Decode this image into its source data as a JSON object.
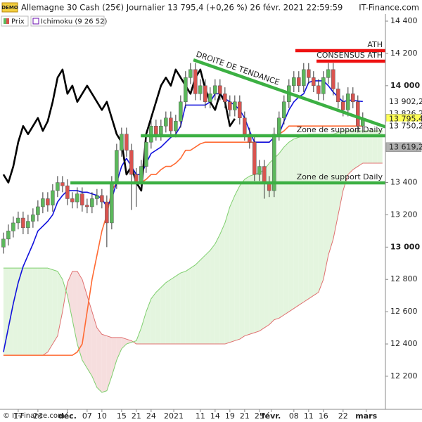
{
  "chart_data": {
    "type": "candlestick",
    "badge": "DEMO",
    "title": "Allemagne 30 Cash (25€) Journalier 13 795,4 (+0,26 %) 26 févr. 2021 22:59:59",
    "source": "IT-Finance.com",
    "copyright": "© IT-Finance.com",
    "legend": [
      "Prix",
      "Ichimoku (9 26 52)"
    ],
    "up_color": "#5cb85c",
    "down_color": "#d9534f",
    "open": [
      13000,
      13050,
      13100,
      13150,
      13180,
      13120,
      13160,
      13200,
      13250,
      13300,
      13260,
      13350,
      13400,
      13380,
      13300,
      13280,
      13330,
      13260,
      13250,
      13300,
      13320,
      13280,
      13150,
      13400,
      13600,
      13700,
      13600,
      13450,
      13400,
      13500,
      13650,
      13750,
      13700,
      13750,
      13800,
      13720,
      13780,
      13900,
      14050,
      14100,
      13950,
      14000,
      13900,
      13950,
      14000,
      13950,
      13900,
      13850,
      13900,
      13800,
      13700,
      13650,
      13450,
      13500,
      13400,
      13350,
      13700,
      13800,
      13900,
      14000,
      14050,
      14000,
      14100,
      14050,
      14000,
      13950,
      14050,
      14100,
      13980,
      13900,
      13850,
      13950,
      13900,
      13750
    ],
    "high": [
      13090,
      13140,
      13190,
      13220,
      13220,
      13200,
      13240,
      13290,
      13340,
      13340,
      13390,
      13440,
      13440,
      13420,
      13340,
      13370,
      13370,
      13300,
      13340,
      13360,
      13360,
      13320,
      13440,
      13640,
      13740,
      13740,
      13640,
      13490,
      13540,
      13690,
      13790,
      13790,
      13790,
      13840,
      13840,
      13820,
      13940,
      14090,
      14140,
      14140,
      14040,
      14040,
      13990,
      14040,
      14040,
      13990,
      13940,
      13940,
      13940,
      13840,
      13740,
      13690,
      13540,
      13540,
      13440,
      13740,
      13840,
      13940,
      14040,
      14090,
      14090,
      14140,
      14140,
      14090,
      14040,
      14090,
      14140,
      14140,
      14020,
      13940,
      13990,
      13990,
      13940,
      13835
    ],
    "low": [
      12960,
      13010,
      13060,
      13110,
      13080,
      13080,
      13120,
      13160,
      13210,
      13220,
      13220,
      13310,
      13340,
      13260,
      13240,
      13240,
      13220,
      13210,
      13210,
      13260,
      13240,
      13000,
      13110,
      13360,
      13560,
      13560,
      13230,
      13250,
      13360,
      13460,
      13610,
      13660,
      13660,
      13710,
      13680,
      13680,
      13740,
      13860,
      14010,
      13910,
      13910,
      13860,
      13860,
      13910,
      13910,
      13860,
      13810,
      13810,
      13760,
      13660,
      13610,
      13410,
      13410,
      13300,
      13310,
      13310,
      13660,
      13760,
      13860,
      13960,
      13960,
      13960,
      14010,
      13960,
      13910,
      13910,
      14010,
      13940,
      13860,
      13810,
      13810,
      13860,
      13710,
      13710
    ],
    "close": [
      13050,
      13100,
      13150,
      13180,
      13120,
      13160,
      13200,
      13250,
      13300,
      13260,
      13350,
      13400,
      13380,
      13300,
      13280,
      13330,
      13260,
      13250,
      13300,
      13320,
      13280,
      13150,
      13400,
      13600,
      13700,
      13600,
      13450,
      13400,
      13500,
      13650,
      13750,
      13700,
      13750,
      13800,
      13720,
      13780,
      13900,
      14050,
      14100,
      13950,
      14000,
      13900,
      13950,
      14000,
      13950,
      13900,
      13850,
      13900,
      13800,
      13700,
      13650,
      13450,
      13500,
      13400,
      13350,
      13700,
      13800,
      13900,
      14000,
      14050,
      14000,
      14100,
      14050,
      14000,
      13950,
      14050,
      14100,
      13980,
      13900,
      13850,
      13950,
      13900,
      13750,
      13795.4
    ],
    "ichimoku": {
      "up_fill": "#e4f5df",
      "down_fill": "#f6dede",
      "span_a": {
        "color": "#7fcf6e",
        "values": [
          12870,
          12870,
          12870,
          12870,
          12870,
          12870,
          12870,
          12870,
          12870,
          12870,
          12860,
          12850,
          12800,
          12700,
          12550,
          12400,
          12300,
          12250,
          12200,
          12130,
          12100,
          12110,
          12200,
          12300,
          12370,
          12400,
          12410,
          12420,
          12500,
          12600,
          12680,
          12720,
          12750,
          12780,
          12800,
          12820,
          12840,
          12850,
          12870,
          12890,
          12920,
          12950,
          12980,
          13020,
          13080,
          13150,
          13250,
          13320,
          13380,
          13420,
          13440,
          13450,
          13460,
          13480,
          13520,
          13550,
          13580,
          13620,
          13650,
          13670,
          13680,
          13690,
          13700,
          13700,
          13700,
          13700,
          13700,
          13700,
          13710,
          13720,
          13720,
          13720,
          13720,
          13720,
          13720,
          13720,
          13720,
          13720
        ]
      },
      "span_b": {
        "color": "#e07070",
        "values": [
          12330,
          12330,
          12330,
          12330,
          12330,
          12330,
          12330,
          12330,
          12330,
          12350,
          12400,
          12450,
          12600,
          12780,
          12850,
          12850,
          12800,
          12700,
          12600,
          12500,
          12460,
          12450,
          12440,
          12440,
          12440,
          12430,
          12420,
          12400,
          12400,
          12400,
          12400,
          12400,
          12400,
          12400,
          12400,
          12400,
          12400,
          12400,
          12400,
          12400,
          12400,
          12400,
          12400,
          12400,
          12400,
          12400,
          12410,
          12420,
          12430,
          12450,
          12460,
          12470,
          12480,
          12500,
          12520,
          12550,
          12560,
          12580,
          12600,
          12620,
          12640,
          12660,
          12680,
          12700,
          12720,
          12800,
          12950,
          13050,
          13200,
          13350,
          13450,
          13480,
          13500,
          13520,
          13520,
          13520,
          13520,
          13520
        ]
      },
      "kijun": {
        "color": "#ff6a33",
        "values": [
          12330,
          12330,
          12330,
          12330,
          12330,
          12330,
          12330,
          12330,
          12330,
          12330,
          12330,
          12330,
          12330,
          12330,
          12330,
          12350,
          12400,
          12600,
          12800,
          12950,
          13100,
          13200,
          13350,
          13400,
          13400,
          13400,
          13400,
          13400,
          13400,
          13420,
          13450,
          13450,
          13480,
          13500,
          13500,
          13520,
          13550,
          13600,
          13600,
          13620,
          13640,
          13650,
          13650,
          13650,
          13650,
          13650,
          13650,
          13650,
          13650,
          13650,
          13650,
          13650,
          13650,
          13650,
          13650,
          13680,
          13700,
          13720,
          13750.2,
          13750.2,
          13750.2,
          13750.2,
          13750.2,
          13750.2,
          13750.2,
          13750.2,
          13750.2,
          13750.2,
          13750.2,
          13750.2,
          13750.2,
          13750.2,
          13750.2,
          13750.2
        ]
      },
      "tenkan": {
        "color": "#1010dd",
        "values": [
          12350,
          12500,
          12650,
          12780,
          12880,
          12950,
          13020,
          13100,
          13130,
          13160,
          13200,
          13280,
          13320,
          13350,
          13350,
          13350,
          13340,
          13340,
          13330,
          13320,
          13300,
          13250,
          13300,
          13400,
          13500,
          13550,
          13500,
          13450,
          13450,
          13520,
          13580,
          13600,
          13620,
          13650,
          13680,
          13700,
          13750,
          13880,
          13880,
          13880,
          13880,
          13880,
          13900,
          13950,
          13950,
          13920,
          13900,
          13880,
          13850,
          13800,
          13720,
          13650,
          13650,
          13650,
          13650,
          13680,
          13700,
          13780,
          13850,
          13900,
          13930,
          13950,
          14020,
          14030,
          14030,
          14030,
          14000,
          13960,
          13930,
          13900,
          13910,
          13910,
          13905,
          13902.2
        ]
      },
      "chikou": {
        "color": "#000000",
        "values": [
          13450,
          13400,
          13500,
          13650,
          13750,
          13700,
          13750,
          13800,
          13720,
          13780,
          13900,
          14050,
          14100,
          13950,
          14000,
          13900,
          13950,
          14000,
          13950,
          13900,
          13850,
          13900,
          13800,
          13700,
          13650,
          13450,
          13500,
          13400,
          13350,
          13700,
          13800,
          13900,
          14000,
          14050,
          14000,
          14100,
          14050,
          14000,
          13950,
          14050,
          14100,
          13980,
          13900,
          13850,
          13950,
          13900,
          13750,
          13795.4
        ]
      }
    },
    "lines": [
      {
        "label": "DROITE DE TENDANCE",
        "color": "#3cb043",
        "points": [
          [
            38.6,
            14160
          ],
          [
            77.6,
            13745
          ]
        ]
      },
      {
        "label": "ATH",
        "color": "#ee1111",
        "points": [
          [
            59.3,
            14217
          ],
          [
            77.6,
            14217
          ]
        ]
      },
      {
        "label": "CONSENSUS ATH",
        "color": "#ee1111",
        "points": [
          [
            63.6,
            14152
          ],
          [
            77.6,
            14152
          ]
        ]
      },
      {
        "label": "Zone de support Daily",
        "color": "#3cb043",
        "points": [
          [
            27.9,
            13690
          ],
          [
            77.6,
            13690
          ]
        ]
      },
      {
        "label": "Zone de support Daily",
        "color": "#3cb043",
        "points": [
          [
            13.6,
            13398
          ],
          [
            77.6,
            13398
          ]
        ]
      }
    ],
    "price_labels": [
      {
        "value": 13902.2,
        "label": "13 902,2",
        "bg": "#ffffff",
        "fg": "#1010dd"
      },
      {
        "value": 13826.2,
        "label": "13 826,2",
        "bg": "#ffffff",
        "fg": "#c8c8c8"
      },
      {
        "value": 13795.4,
        "label": "13 795,4",
        "bg": "#ffff55",
        "fg": "#000000"
      },
      {
        "value": 13750.2,
        "label": "13 750,2",
        "bg": "#ffffff",
        "fg": "#ff6a33"
      },
      {
        "value": 13619.2,
        "label": "13 619,2",
        "bg": "#b0b0b0",
        "fg": "#ffffff"
      }
    ],
    "xlim": [
      -0.7,
      77.6
    ],
    "xticks": [
      {
        "value": 3,
        "label": "17"
      },
      {
        "value": 7,
        "label": "23"
      },
      {
        "value": 13,
        "label": "déc."
      },
      {
        "value": 17,
        "label": "07"
      },
      {
        "value": 20,
        "label": "10"
      },
      {
        "value": 24,
        "label": "15"
      },
      {
        "value": 27,
        "label": "21"
      },
      {
        "value": 30,
        "label": "24"
      },
      {
        "value": 34.6,
        "label": "2021"
      },
      {
        "value": 40,
        "label": "11"
      },
      {
        "value": 43,
        "label": "14"
      },
      {
        "value": 46,
        "label": "19"
      },
      {
        "value": 49,
        "label": "21"
      },
      {
        "value": 52,
        "label": "25"
      },
      {
        "value": 54.4,
        "label": "févr."
      },
      {
        "value": 59,
        "label": "08"
      },
      {
        "value": 62,
        "label": "11"
      },
      {
        "value": 65,
        "label": "16"
      },
      {
        "value": 69,
        "label": "22"
      },
      {
        "value": 73.7,
        "label": "mars"
      }
    ],
    "ylim": [
      11995,
      14435
    ],
    "yticks": [
      {
        "value": 12200,
        "label": "12 200"
      },
      {
        "value": 12400,
        "label": "12 400"
      },
      {
        "value": 12600,
        "label": "12 600"
      },
      {
        "value": 12800,
        "label": "12 800"
      },
      {
        "value": 13000,
        "label": "13 000"
      },
      {
        "value": 13200,
        "label": "13 200"
      },
      {
        "value": 13400,
        "label": "13 400"
      },
      {
        "value": 14000,
        "label": "14 000"
      },
      {
        "value": 14200,
        "label": "14 200"
      },
      {
        "value": 14400,
        "label": "14 400"
      }
    ]
  }
}
